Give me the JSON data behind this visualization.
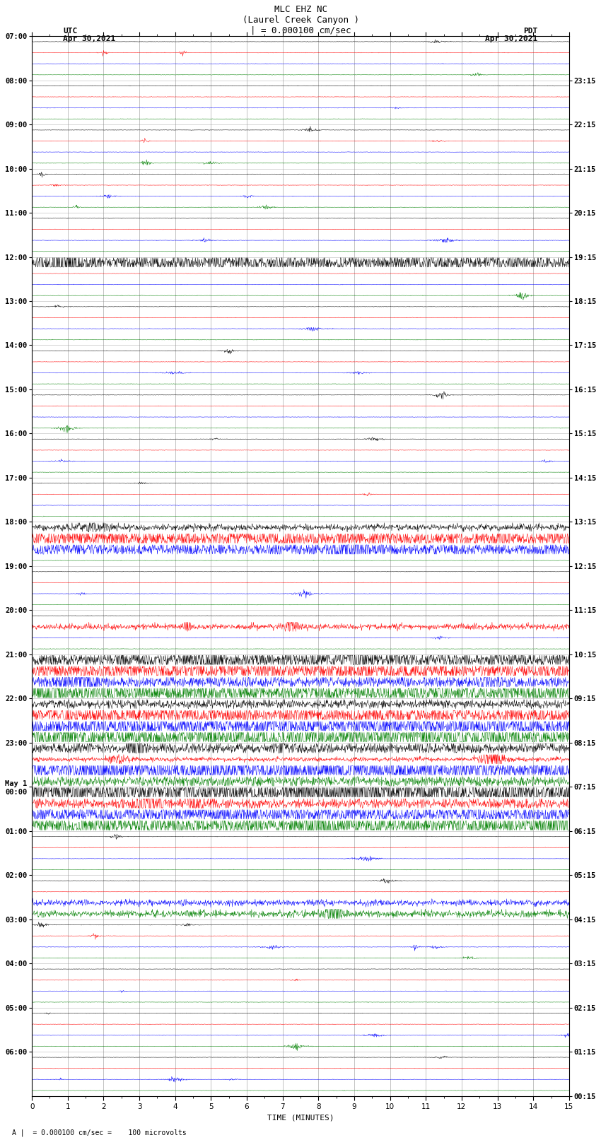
{
  "title_line1": "MLC EHZ NC",
  "title_line2": "(Laurel Creek Canyon )",
  "title_scale": "| = 0.000100 cm/sec",
  "label_utc": "UTC",
  "label_date_utc": "Apr 30,2021",
  "label_pdt": "PDT",
  "label_date_pdt": "Apr 30,2021",
  "xlabel": "TIME (MINUTES)",
  "bottom_label": "A |  = 0.000100 cm/sec =    100 microvolts",
  "utc_labels": [
    "07:00",
    "08:00",
    "09:00",
    "10:00",
    "11:00",
    "12:00",
    "13:00",
    "14:00",
    "15:00",
    "16:00",
    "17:00",
    "18:00",
    "19:00",
    "20:00",
    "21:00",
    "22:00",
    "23:00",
    "May 1\n00:00",
    "01:00",
    "02:00",
    "03:00",
    "04:00",
    "05:00",
    "06:00"
  ],
  "pdt_labels": [
    "00:15",
    "01:15",
    "02:15",
    "03:15",
    "04:15",
    "05:15",
    "06:15",
    "07:15",
    "08:15",
    "09:15",
    "10:15",
    "11:15",
    "12:15",
    "13:15",
    "14:15",
    "15:15",
    "16:15",
    "17:15",
    "18:15",
    "19:15",
    "20:15",
    "21:15",
    "22:15",
    "23:15"
  ],
  "n_hours": 24,
  "colors": [
    "black",
    "red",
    "blue",
    "green"
  ],
  "x_min": 0,
  "x_max": 15,
  "bg_color": "white",
  "grid_color": "#888888",
  "title_fontsize": 9,
  "tick_fontsize": 7.5,
  "label_fontsize": 8,
  "seed": 12345,
  "active_rows": {
    "56": [
      0,
      1,
      2,
      3
    ],
    "57": [
      0,
      1,
      2,
      3
    ],
    "58": [
      0,
      1,
      2,
      3
    ],
    "59": [
      0,
      1,
      2,
      3
    ],
    "60": [
      0,
      1,
      2,
      3
    ],
    "61": [
      0,
      1,
      2,
      3
    ],
    "62": [
      0,
      1,
      2,
      3
    ],
    "63": [
      0,
      1,
      2,
      3
    ],
    "64": [
      0,
      1,
      2,
      3
    ],
    "65": [
      0,
      1,
      2,
      3
    ],
    "66": [
      0,
      1,
      2,
      3
    ],
    "67": [
      0,
      1,
      2,
      3
    ],
    "68": [
      0,
      1,
      2,
      3
    ],
    "69": [
      0,
      1,
      2,
      3
    ],
    "70": [
      0,
      1,
      2,
      3
    ],
    "71": [
      0,
      1,
      2,
      3
    ],
    "44": [
      0,
      1,
      2
    ],
    "45": [
      0,
      1,
      2
    ],
    "46": [
      0,
      1,
      2
    ],
    "47": [
      0,
      1,
      2
    ],
    "48": [
      1,
      2,
      3
    ],
    "49": [
      2,
      3
    ],
    "76": [
      2,
      3
    ],
    "77": [
      2,
      3
    ],
    "78": [
      2,
      3
    ],
    "79": [
      2,
      3
    ],
    "80": [
      1,
      2
    ],
    "20": [
      0
    ],
    "21": [
      0
    ],
    "53": [
      1
    ],
    "52": [
      1
    ]
  }
}
